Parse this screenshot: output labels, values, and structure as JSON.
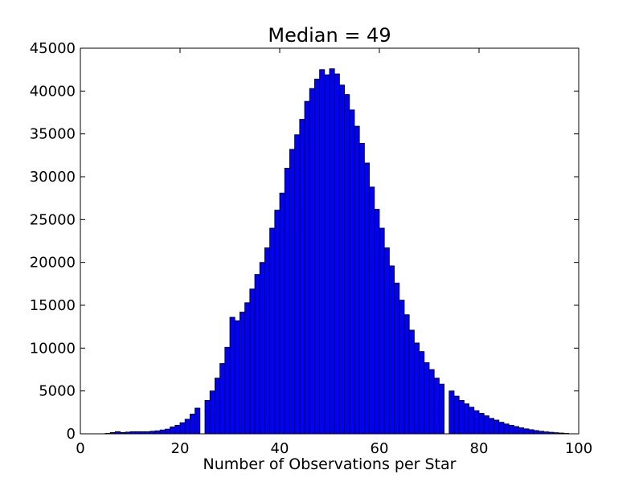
{
  "chart_data": {
    "type": "bar",
    "title": "Median = 49",
    "xlabel": "Number of Observations per Star",
    "ylabel": "",
    "xlim": [
      0,
      100
    ],
    "ylim": [
      0,
      45000
    ],
    "xticks": [
      0,
      20,
      40,
      60,
      80,
      100
    ],
    "yticks": [
      0,
      5000,
      10000,
      15000,
      20000,
      25000,
      30000,
      35000,
      40000,
      45000
    ],
    "grid": false,
    "bar_color": "#0000ff",
    "bin_width": 1,
    "bins": [
      {
        "x": 1,
        "y": 0
      },
      {
        "x": 2,
        "y": 0
      },
      {
        "x": 3,
        "y": 0
      },
      {
        "x": 4,
        "y": 0
      },
      {
        "x": 5,
        "y": 50
      },
      {
        "x": 6,
        "y": 150
      },
      {
        "x": 7,
        "y": 250
      },
      {
        "x": 8,
        "y": 150
      },
      {
        "x": 9,
        "y": 200
      },
      {
        "x": 10,
        "y": 250
      },
      {
        "x": 11,
        "y": 250
      },
      {
        "x": 12,
        "y": 250
      },
      {
        "x": 13,
        "y": 250
      },
      {
        "x": 14,
        "y": 300
      },
      {
        "x": 15,
        "y": 350
      },
      {
        "x": 16,
        "y": 450
      },
      {
        "x": 17,
        "y": 550
      },
      {
        "x": 18,
        "y": 800
      },
      {
        "x": 19,
        "y": 1000
      },
      {
        "x": 20,
        "y": 1300
      },
      {
        "x": 21,
        "y": 1700
      },
      {
        "x": 22,
        "y": 2300
      },
      {
        "x": 23,
        "y": 3000
      },
      {
        "x": 25,
        "y": 3900
      },
      {
        "x": 26,
        "y": 5000
      },
      {
        "x": 27,
        "y": 6500
      },
      {
        "x": 28,
        "y": 8200
      },
      {
        "x": 29,
        "y": 10100
      },
      {
        "x": 30,
        "y": 13600
      },
      {
        "x": 31,
        "y": 13200
      },
      {
        "x": 32,
        "y": 14200
      },
      {
        "x": 33,
        "y": 15300
      },
      {
        "x": 34,
        "y": 16900
      },
      {
        "x": 35,
        "y": 18600
      },
      {
        "x": 36,
        "y": 20000
      },
      {
        "x": 37,
        "y": 21700
      },
      {
        "x": 38,
        "y": 24000
      },
      {
        "x": 39,
        "y": 26100
      },
      {
        "x": 40,
        "y": 28100
      },
      {
        "x": 41,
        "y": 31000
      },
      {
        "x": 42,
        "y": 33200
      },
      {
        "x": 43,
        "y": 34900
      },
      {
        "x": 44,
        "y": 36700
      },
      {
        "x": 45,
        "y": 38800
      },
      {
        "x": 46,
        "y": 40300
      },
      {
        "x": 47,
        "y": 41400
      },
      {
        "x": 48,
        "y": 42500
      },
      {
        "x": 49,
        "y": 41900
      },
      {
        "x": 50,
        "y": 42600
      },
      {
        "x": 51,
        "y": 42000
      },
      {
        "x": 52,
        "y": 40700
      },
      {
        "x": 53,
        "y": 39600
      },
      {
        "x": 54,
        "y": 37800
      },
      {
        "x": 55,
        "y": 35900
      },
      {
        "x": 56,
        "y": 33900
      },
      {
        "x": 57,
        "y": 31600
      },
      {
        "x": 58,
        "y": 28800
      },
      {
        "x": 59,
        "y": 26200
      },
      {
        "x": 60,
        "y": 24000
      },
      {
        "x": 61,
        "y": 21700
      },
      {
        "x": 62,
        "y": 19600
      },
      {
        "x": 63,
        "y": 17600
      },
      {
        "x": 64,
        "y": 15600
      },
      {
        "x": 65,
        "y": 13900
      },
      {
        "x": 66,
        "y": 12100
      },
      {
        "x": 67,
        "y": 10600
      },
      {
        "x": 68,
        "y": 9600
      },
      {
        "x": 69,
        "y": 8300
      },
      {
        "x": 70,
        "y": 7500
      },
      {
        "x": 71,
        "y": 6500
      },
      {
        "x": 72,
        "y": 5800
      },
      {
        "x": 74,
        "y": 5000
      },
      {
        "x": 75,
        "y": 4400
      },
      {
        "x": 76,
        "y": 3900
      },
      {
        "x": 77,
        "y": 3500
      },
      {
        "x": 78,
        "y": 3100
      },
      {
        "x": 79,
        "y": 2700
      },
      {
        "x": 80,
        "y": 2400
      },
      {
        "x": 81,
        "y": 2100
      },
      {
        "x": 82,
        "y": 1800
      },
      {
        "x": 83,
        "y": 1600
      },
      {
        "x": 84,
        "y": 1350
      },
      {
        "x": 85,
        "y": 1150
      },
      {
        "x": 86,
        "y": 1000
      },
      {
        "x": 87,
        "y": 850
      },
      {
        "x": 88,
        "y": 700
      },
      {
        "x": 89,
        "y": 580
      },
      {
        "x": 90,
        "y": 480
      },
      {
        "x": 91,
        "y": 380
      },
      {
        "x": 92,
        "y": 300
      },
      {
        "x": 93,
        "y": 230
      },
      {
        "x": 94,
        "y": 180
      },
      {
        "x": 95,
        "y": 130
      },
      {
        "x": 96,
        "y": 90
      },
      {
        "x": 97,
        "y": 50
      }
    ]
  }
}
